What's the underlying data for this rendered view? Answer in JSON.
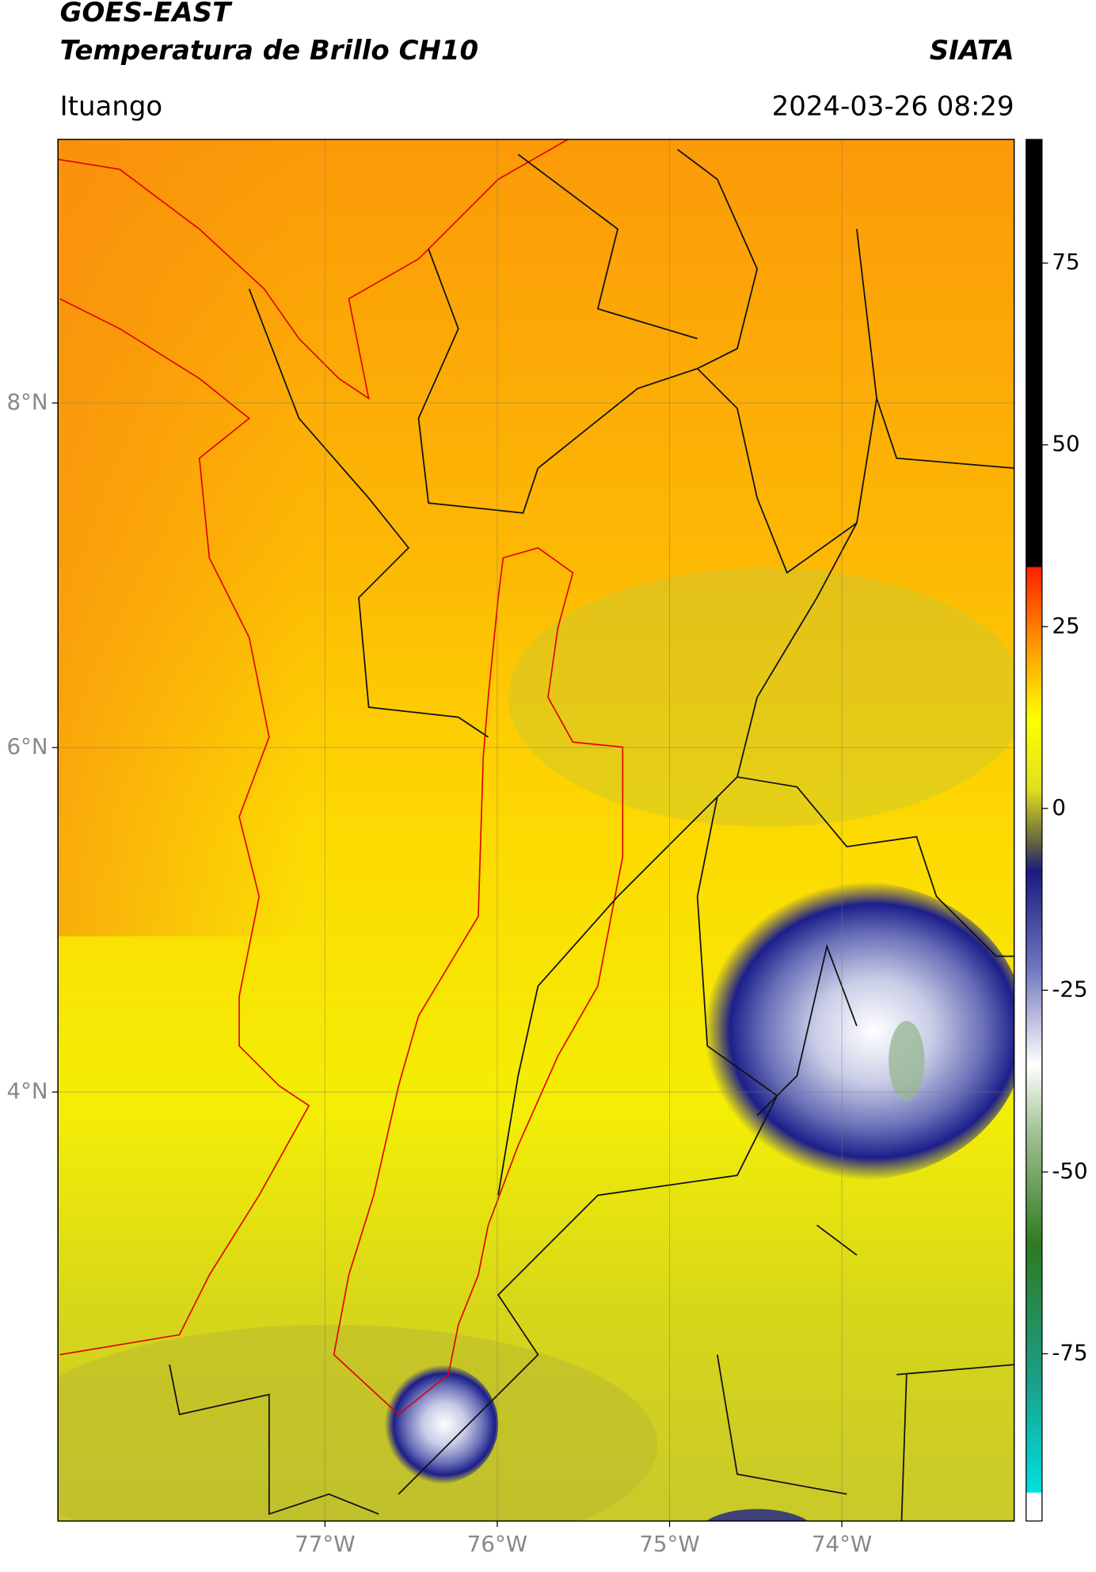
{
  "header": {
    "satellite": "GOES-EAST",
    "product": "Temperatura de Brillo CH10",
    "agency": "SIATA",
    "region": "Ituango",
    "datetime": "2024-03-26 08:29"
  },
  "map": {
    "xlim": [
      -78.55,
      -73.0
    ],
    "ylim": [
      1.51,
      9.53
    ],
    "xticks": [
      {
        "value": -77,
        "label": "77°W"
      },
      {
        "value": -76,
        "label": "76°W"
      },
      {
        "value": -75,
        "label": "75°W"
      },
      {
        "value": -74,
        "label": "74°W"
      }
    ],
    "yticks": [
      {
        "value": 8,
        "label": "8°N"
      },
      {
        "value": 6,
        "label": "6°N"
      },
      {
        "value": 4,
        "label": "4°N"
      }
    ],
    "grid": true
  },
  "colorbar": {
    "lim": [
      -98,
      92
    ],
    "ticks": [
      75,
      50,
      25,
      0,
      -25,
      -50,
      -75
    ]
  }
}
